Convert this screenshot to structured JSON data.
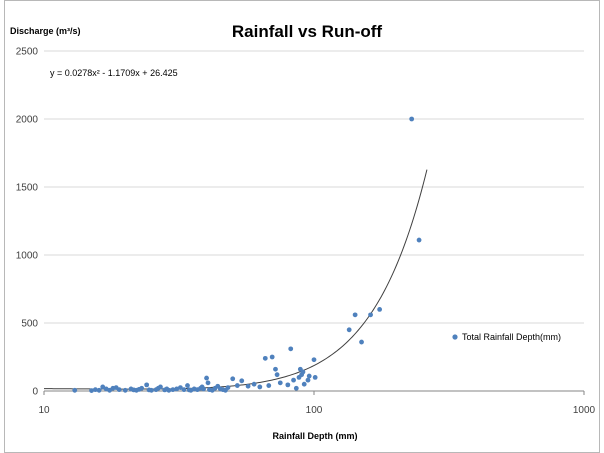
{
  "chart_data": {
    "type": "scatter",
    "title": "Rainfall vs Run-off",
    "ylabel": "Discharge (m³/s)",
    "xlabel": "Rainfall Depth (mm)",
    "x_scale": "log",
    "xlim": [
      10,
      1000
    ],
    "ylim": [
      0,
      2500
    ],
    "x_ticks": [
      10,
      100,
      1000
    ],
    "y_ticks": [
      0,
      500,
      1000,
      1500,
      2000,
      2500
    ],
    "grid": "horizontal",
    "legend_position": "right",
    "series": [
      {
        "name": "Total Rainfall Depth(mm)",
        "color": "#4f81bd",
        "points": [
          [
            13,
            5
          ],
          [
            15,
            3
          ],
          [
            15.5,
            10
          ],
          [
            16,
            5
          ],
          [
            16.5,
            30
          ],
          [
            17,
            15
          ],
          [
            17.5,
            5
          ],
          [
            18,
            20
          ],
          [
            18.5,
            25
          ],
          [
            19,
            10
          ],
          [
            20,
            5
          ],
          [
            21,
            15
          ],
          [
            21.5,
            8
          ],
          [
            22,
            5
          ],
          [
            22.5,
            12
          ],
          [
            23,
            20
          ],
          [
            24,
            45
          ],
          [
            24.5,
            8
          ],
          [
            25,
            5
          ],
          [
            26,
            10
          ],
          [
            26.5,
            20
          ],
          [
            27,
            30
          ],
          [
            28,
            8
          ],
          [
            28.5,
            15
          ],
          [
            29,
            5
          ],
          [
            30,
            10
          ],
          [
            31,
            15
          ],
          [
            32,
            25
          ],
          [
            33,
            10
          ],
          [
            34,
            40
          ],
          [
            34.5,
            8
          ],
          [
            35,
            5
          ],
          [
            36,
            15
          ],
          [
            37,
            10
          ],
          [
            38,
            20
          ],
          [
            38.5,
            30
          ],
          [
            39,
            15
          ],
          [
            40,
            95
          ],
          [
            40.5,
            60
          ],
          [
            41,
            10
          ],
          [
            42,
            5
          ],
          [
            43,
            20
          ],
          [
            44,
            35
          ],
          [
            45,
            15
          ],
          [
            46,
            10
          ],
          [
            47,
            5
          ],
          [
            48,
            25
          ],
          [
            50,
            90
          ],
          [
            52,
            40
          ],
          [
            54,
            75
          ],
          [
            57,
            35
          ],
          [
            60,
            50
          ],
          [
            63,
            30
          ],
          [
            66,
            240
          ],
          [
            68,
            40
          ],
          [
            70,
            250
          ],
          [
            72,
            160
          ],
          [
            73,
            120
          ],
          [
            75,
            60
          ],
          [
            80,
            45
          ],
          [
            82,
            310
          ],
          [
            84,
            80
          ],
          [
            86,
            20
          ],
          [
            88,
            100
          ],
          [
            89,
            160
          ],
          [
            90,
            120
          ],
          [
            91,
            140
          ],
          [
            92,
            50
          ],
          [
            95,
            80
          ],
          [
            96,
            110
          ],
          [
            100,
            230
          ],
          [
            101,
            100
          ],
          [
            135,
            450
          ],
          [
            142,
            560
          ],
          [
            150,
            360
          ],
          [
            162,
            560
          ],
          [
            175,
            600
          ],
          [
            230,
            2000
          ],
          [
            245,
            1110
          ]
        ]
      }
    ],
    "trendline": {
      "equation": "y = 0.0278x² - 1.1709x + 26.425",
      "a": 0.0278,
      "b": -1.1709,
      "c": 26.425,
      "x_range": [
        10,
        262
      ],
      "color": "#404040"
    }
  }
}
